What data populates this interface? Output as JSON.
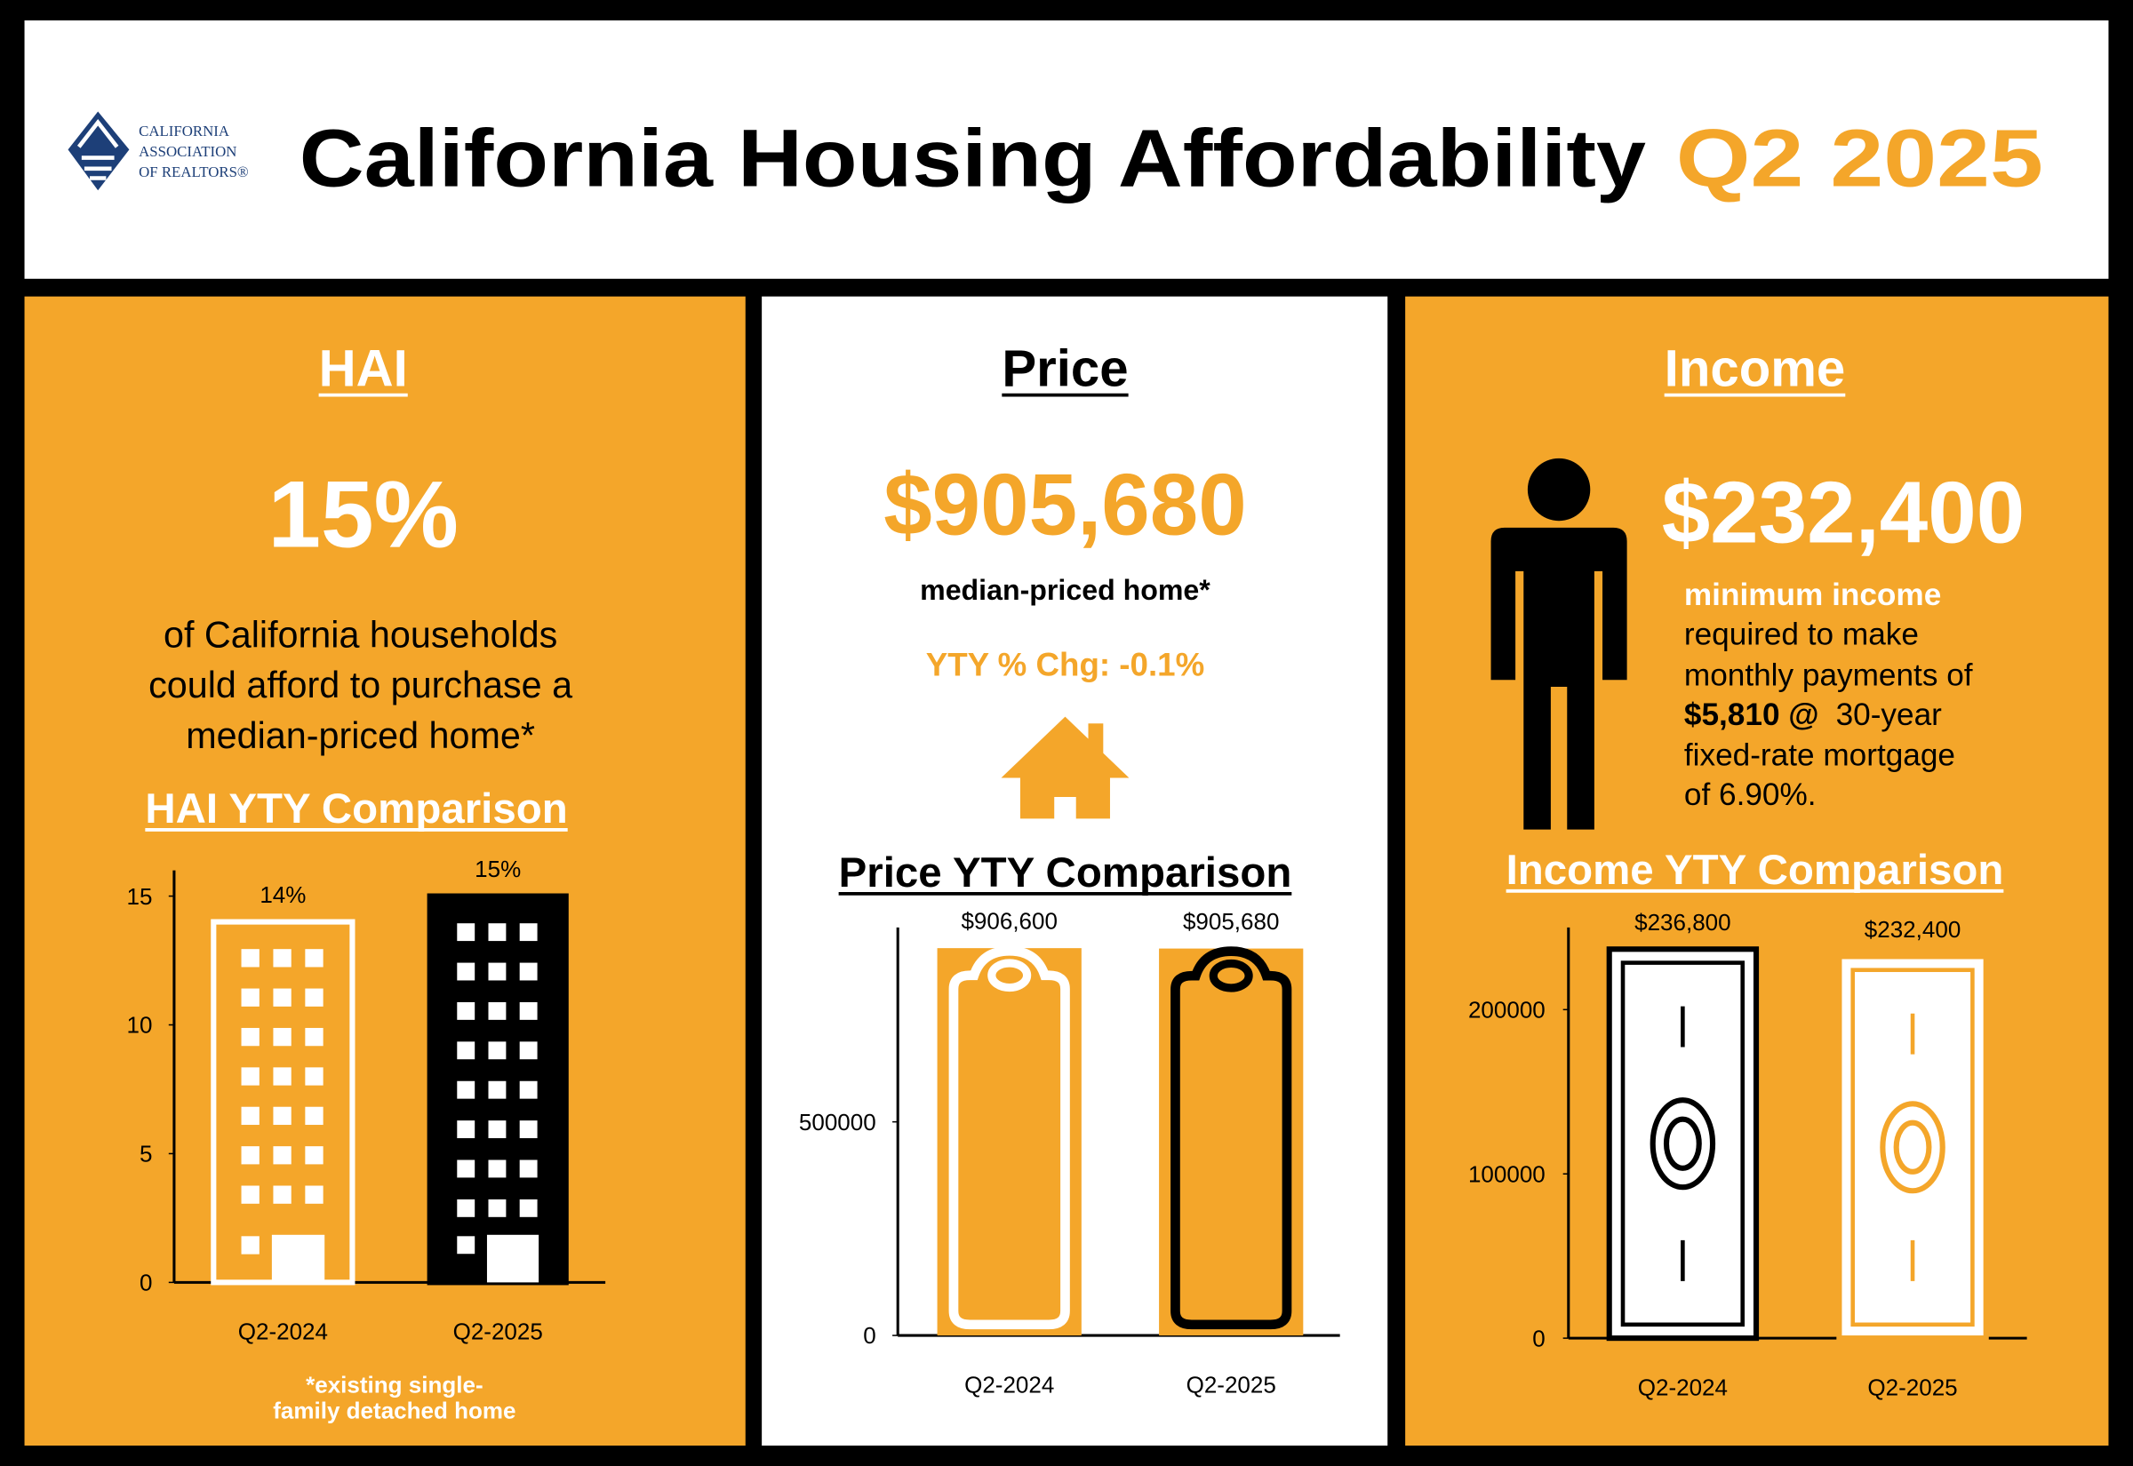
{
  "header": {
    "logo_lines": [
      "CALIFORNIA",
      "ASSOCIATION",
      "OF REALTORS®"
    ],
    "title": "California Housing Affordability",
    "period": "Q2 2025"
  },
  "panels": {
    "hai": {
      "heading": "HAI",
      "big": "15%",
      "lines": [
        "of California households",
        "could afford to purchase a",
        "median-priced home*"
      ],
      "footnote": [
        "*existing single-",
        "family detached home"
      ]
    },
    "price": {
      "heading": "Price",
      "big": "$905,680",
      "caption": "median-priced home*",
      "change": "YTY % Chg: -0.1%"
    },
    "income": {
      "heading": "Income",
      "big": "$232,400",
      "lead": "minimum income",
      "lines": [
        "required to make",
        "monthly payments of"
      ],
      "payment": "$5,810 @",
      "term": "30-year",
      "lines2": [
        "fixed-rate mortgage",
        "of 6.90%."
      ]
    }
  },
  "chart_data": [
    {
      "type": "bar",
      "title": "HAI YTY Comparison",
      "categories": [
        "Q2-2024",
        "Q2-2025"
      ],
      "values": [
        14,
        15
      ],
      "value_labels": [
        "14%",
        "15%"
      ],
      "colors": [
        "#f4a62a",
        "#000000"
      ],
      "outline_colors": [
        "#ffffff",
        "#000000"
      ],
      "ylim": [
        0,
        16
      ],
      "yticks": [
        0,
        5,
        10,
        15
      ]
    },
    {
      "type": "bar",
      "title": "Price YTY Comparison",
      "categories": [
        "Q2-2024",
        "Q2-2025"
      ],
      "values": [
        906600,
        905680
      ],
      "value_labels": [
        "$906,600",
        "$905,680"
      ],
      "colors": [
        "#f4a62a",
        "#f4a62a"
      ],
      "outline_colors": [
        "#ffffff",
        "#000000"
      ],
      "ylim": [
        0,
        955000
      ],
      "yticks": [
        0,
        500000
      ]
    },
    {
      "type": "bar",
      "title": "Income YTY Comparison",
      "categories": [
        "Q2-2024",
        "Q2-2025"
      ],
      "values": [
        236800,
        232400
      ],
      "value_labels": [
        "$236,800",
        "$232,400"
      ],
      "colors": [
        "#ffffff",
        "#ffffff"
      ],
      "outline_colors": [
        "#000000",
        "#f4a62a"
      ],
      "ylim": [
        0,
        250000
      ],
      "yticks": [
        0,
        100000,
        200000
      ]
    }
  ]
}
